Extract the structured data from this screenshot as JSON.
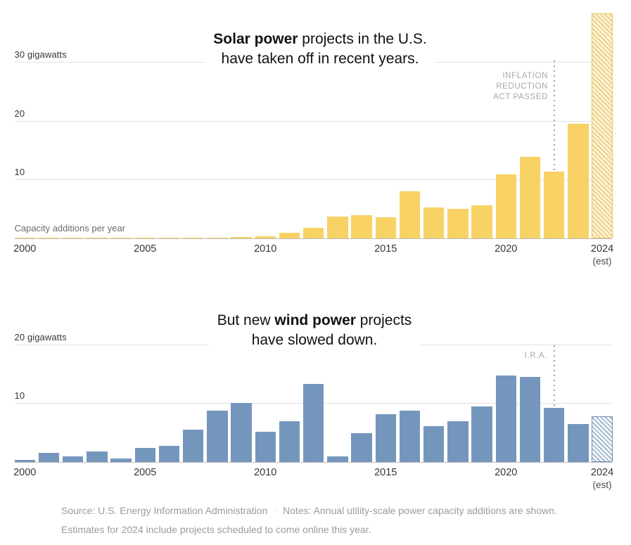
{
  "colors": {
    "solar_bar": "#f8d264",
    "solar_hatch_bg": "#fdf5da",
    "solar_hatch_stripe": "#edd28d",
    "solar_hatch_border": "#e9c75e",
    "wind_bar": "#7496bd",
    "wind_hatch_bg": "#ffffff",
    "wind_hatch_stripe": "#a3b9d2",
    "wind_hatch_border": "#7291b4",
    "grid": "#e2e2e2",
    "annotation_gray": "#a8a8a8"
  },
  "chart_data": [
    {
      "type": "bar",
      "name": "solar",
      "title": "Solar power projects in the U.S. have taken off in recent years.",
      "title_parts": {
        "line1_pre": "",
        "line1_bold": "Solar power",
        "line1_post": " projects in the U.S.",
        "line2": "have taken off in recent years."
      },
      "axis_note": "Capacity additions per year",
      "unit": "gigawatts",
      "ylim": [
        0,
        38.5
      ],
      "grid": true,
      "y_axis": [
        {
          "value": 30,
          "label": "30 gigawatts"
        },
        {
          "value": 20,
          "label": "20"
        },
        {
          "value": 10,
          "label": "10"
        }
      ],
      "x_ticks": [
        {
          "year": 2000,
          "label": "2000"
        },
        {
          "year": 2005,
          "label": "2005"
        },
        {
          "year": 2010,
          "label": "2010"
        },
        {
          "year": 2015,
          "label": "2015"
        },
        {
          "year": 2020,
          "label": "2020"
        },
        {
          "year": 2024,
          "label": "2024",
          "sublabel": "(est)"
        }
      ],
      "years": [
        2000,
        2001,
        2002,
        2003,
        2004,
        2005,
        2006,
        2007,
        2008,
        2009,
        2010,
        2011,
        2012,
        2013,
        2014,
        2015,
        2016,
        2017,
        2018,
        2019,
        2020,
        2021,
        2022,
        2023,
        2024
      ],
      "values": [
        0.05,
        0.05,
        0.05,
        0.06,
        0.06,
        0.08,
        0.08,
        0.1,
        0.12,
        0.18,
        0.3,
        1.0,
        1.8,
        3.7,
        4.0,
        3.6,
        8.0,
        5.3,
        5.0,
        5.6,
        10.9,
        13.9,
        11.4,
        19.5,
        38.2
      ],
      "estimated_year": 2024,
      "annotation": {
        "lines": [
          "INFLATION",
          "REDUCTION",
          "ACT PASSED"
        ],
        "event_year": 2022
      }
    },
    {
      "type": "bar",
      "name": "wind",
      "title": "But new wind power projects have slowed down.",
      "title_parts": {
        "line1_pre": "But new ",
        "line1_bold": "wind power",
        "line1_post": " projects",
        "line2": "have slowed down."
      },
      "axis_note": "",
      "unit": "gigawatts",
      "ylim": [
        0,
        20
      ],
      "grid": true,
      "y_axis": [
        {
          "value": 20,
          "label": "20 gigawatts"
        },
        {
          "value": 10,
          "label": "10"
        }
      ],
      "x_ticks": [
        {
          "year": 2000,
          "label": "2000"
        },
        {
          "year": 2005,
          "label": "2005"
        },
        {
          "year": 2010,
          "label": "2010"
        },
        {
          "year": 2015,
          "label": "2015"
        },
        {
          "year": 2020,
          "label": "2020"
        },
        {
          "year": 2024,
          "label": "2024",
          "sublabel": "(est)"
        }
      ],
      "years": [
        2000,
        2001,
        2002,
        2003,
        2004,
        2005,
        2006,
        2007,
        2008,
        2009,
        2010,
        2011,
        2012,
        2013,
        2014,
        2015,
        2016,
        2017,
        2018,
        2019,
        2020,
        2021,
        2022,
        2023,
        2024
      ],
      "values": [
        0.3,
        1.6,
        0.9,
        1.8,
        0.6,
        2.4,
        2.8,
        5.5,
        8.7,
        10.0,
        5.1,
        6.9,
        13.3,
        1.0,
        4.9,
        8.1,
        8.7,
        6.1,
        6.9,
        9.4,
        14.7,
        14.5,
        9.2,
        6.5,
        7.8
      ],
      "estimated_year": 2024,
      "annotation": {
        "lines": [
          "I.R.A."
        ],
        "event_year": 2022
      }
    }
  ],
  "footer": {
    "source": "Source: U.S. Energy Information Administration",
    "separator": "·",
    "notes": "Notes: Annual utility-scale power capacity additions are shown. Estimates for 2024 include projects scheduled to come online this year."
  }
}
